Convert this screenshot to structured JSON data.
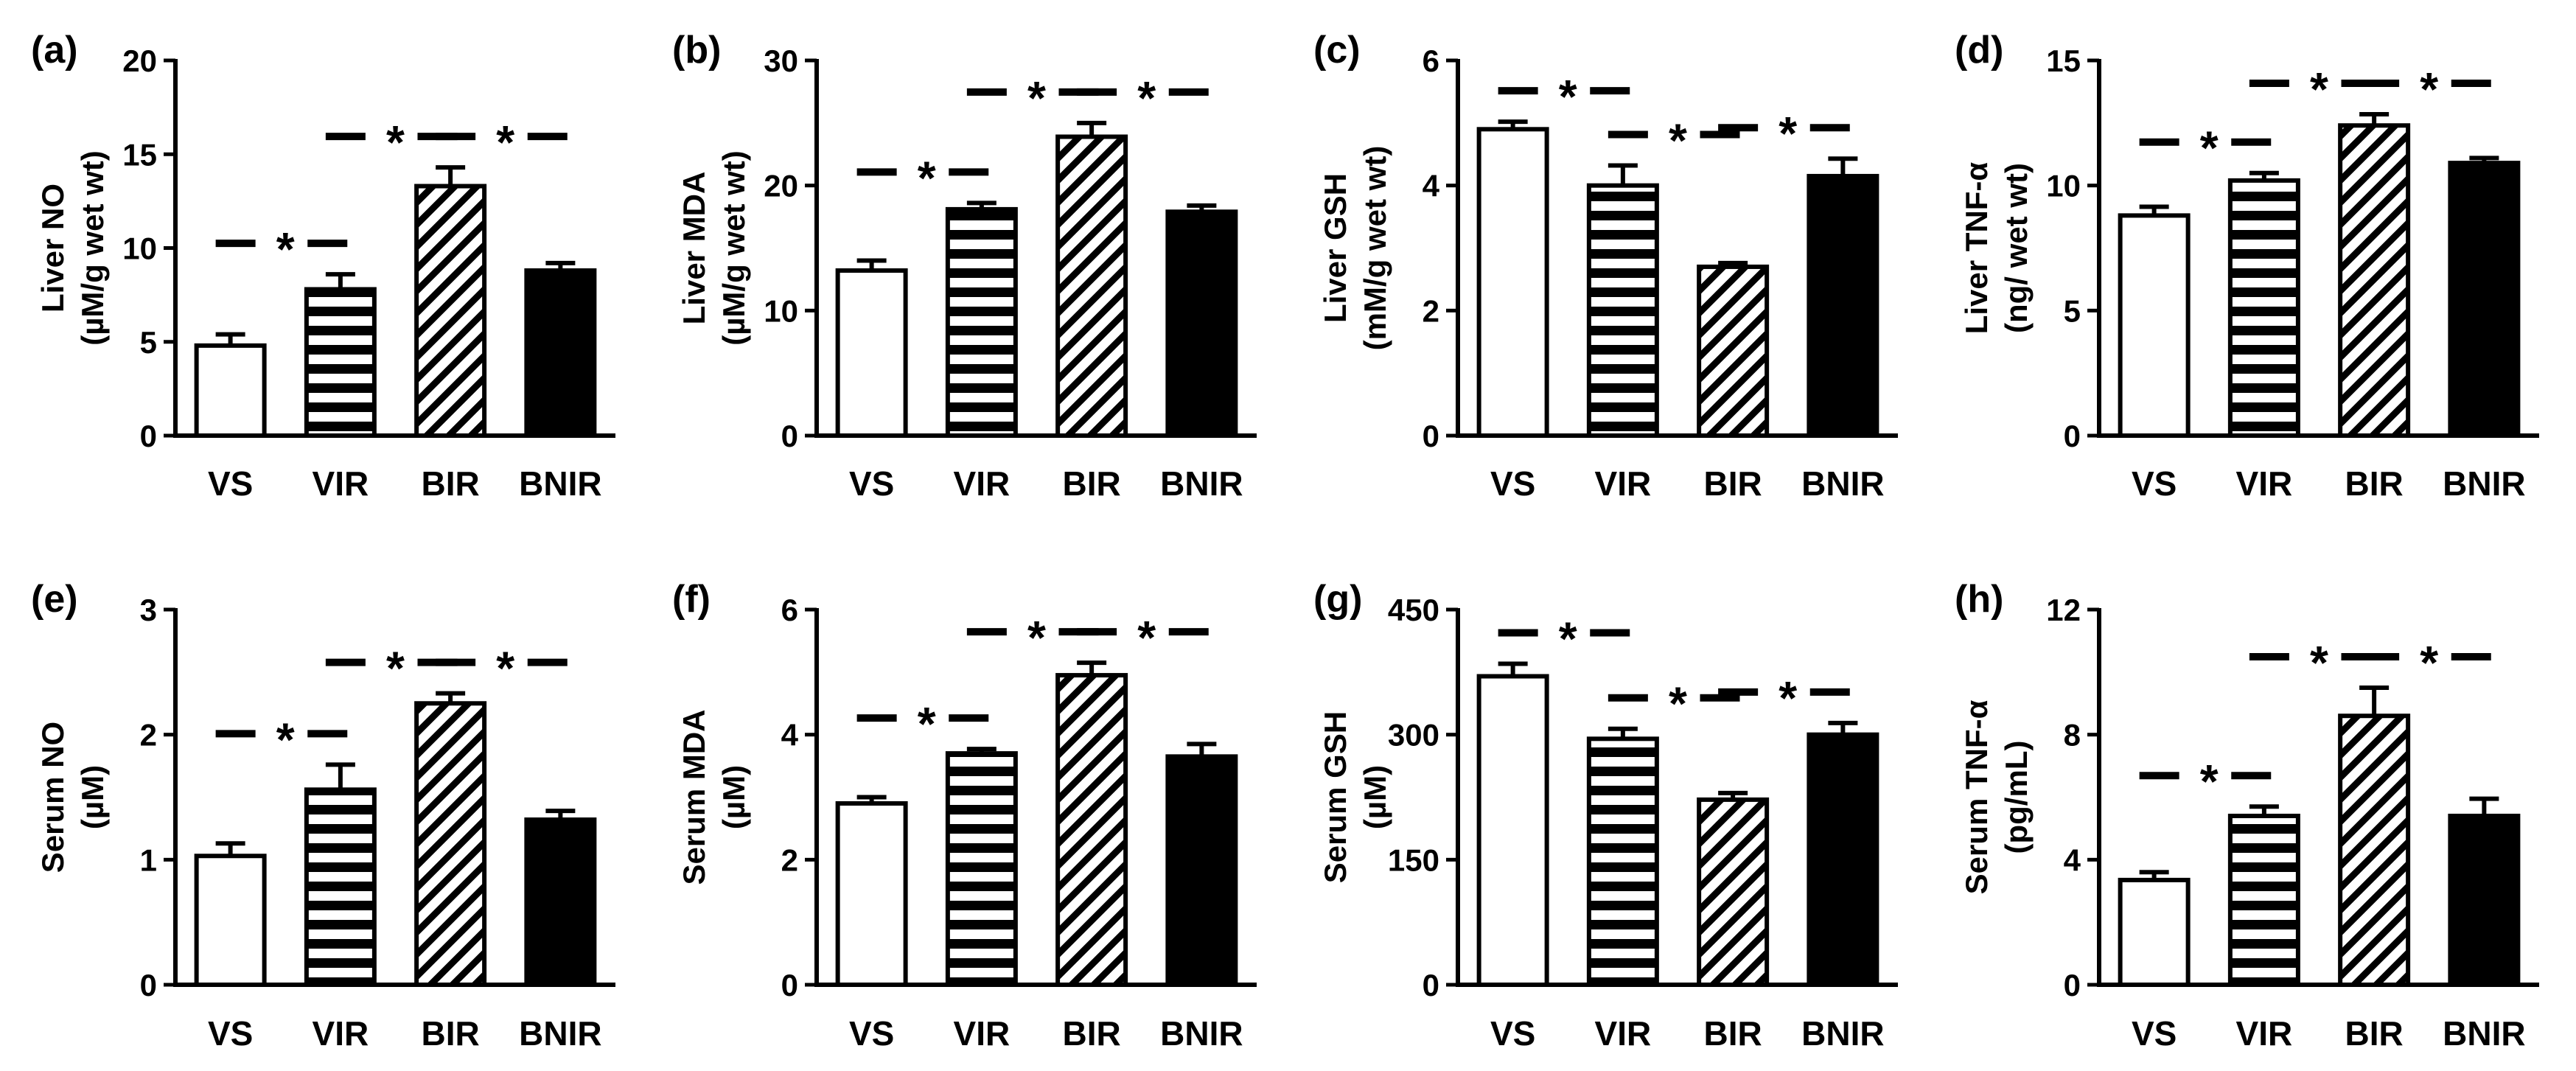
{
  "chart_data": [
    {
      "panel": "(a)",
      "type": "bar",
      "ylabel": [
        "Liver NO",
        "(µM/g wet wt)"
      ],
      "categories": [
        "VS",
        "VIR",
        "BIR",
        "BNIR"
      ],
      "values": [
        4.8,
        7.8,
        13.3,
        8.8
      ],
      "errors": [
        0.6,
        0.8,
        1.0,
        0.4
      ],
      "ylim": [
        0,
        20
      ],
      "yticks": [
        "0",
        "5",
        "10",
        "15",
        "20"
      ],
      "significance": [
        {
          "from": 0,
          "to": 1,
          "label": "*"
        },
        {
          "from": 1,
          "to": 2,
          "label": "*"
        },
        {
          "from": 2,
          "to": 3,
          "label": "*"
        }
      ]
    },
    {
      "panel": "(b)",
      "type": "bar",
      "ylabel": [
        "Liver MDA",
        "(µM/g wet wt)"
      ],
      "categories": [
        "VS",
        "VIR",
        "BIR",
        "BNIR"
      ],
      "values": [
        13.2,
        18.1,
        23.9,
        17.9
      ],
      "errors": [
        0.8,
        0.5,
        1.1,
        0.5
      ],
      "ylim": [
        0,
        30
      ],
      "yticks": [
        "0",
        "10",
        "20",
        "30"
      ],
      "significance": [
        {
          "from": 0,
          "to": 1,
          "label": "*"
        },
        {
          "from": 1,
          "to": 2,
          "label": "*"
        },
        {
          "from": 2,
          "to": 3,
          "label": "*"
        }
      ]
    },
    {
      "panel": "(c)",
      "type": "bar",
      "ylabel": [
        "Liver GSH",
        "(mM/g wet wt)"
      ],
      "categories": [
        "VS",
        "VIR",
        "BIR",
        "BNIR"
      ],
      "values": [
        4.9,
        4.0,
        2.7,
        4.15
      ],
      "errors": [
        0.12,
        0.32,
        0.06,
        0.28
      ],
      "ylim": [
        0,
        6
      ],
      "yticks": [
        "0",
        "2",
        "4",
        "6"
      ],
      "significance": [
        {
          "from": 0,
          "to": 1,
          "label": "*"
        },
        {
          "from": 1,
          "to": 2,
          "label": "*"
        },
        {
          "from": 2,
          "to": 3,
          "label": "*"
        }
      ]
    },
    {
      "panel": "(d)",
      "type": "bar",
      "ylabel": [
        "Liver TNF-α",
        "(ng/ wet wt)"
      ],
      "categories": [
        "VS",
        "VIR",
        "BIR",
        "BNIR"
      ],
      "values": [
        8.8,
        10.2,
        12.4,
        10.9
      ],
      "errors": [
        0.35,
        0.3,
        0.45,
        0.2
      ],
      "ylim": [
        0,
        15
      ],
      "yticks": [
        "0",
        "5",
        "10",
        "15"
      ],
      "significance": [
        {
          "from": 0,
          "to": 1,
          "label": "*"
        },
        {
          "from": 1,
          "to": 2,
          "label": "*"
        },
        {
          "from": 2,
          "to": 3,
          "label": "*"
        }
      ]
    },
    {
      "panel": "(e)",
      "type": "bar",
      "ylabel": [
        "Serum NO",
        "(µM)"
      ],
      "categories": [
        "VS",
        "VIR",
        "BIR",
        "BNIR"
      ],
      "values": [
        1.03,
        1.56,
        2.25,
        1.32
      ],
      "errors": [
        0.1,
        0.2,
        0.08,
        0.07
      ],
      "ylim": [
        0,
        3
      ],
      "yticks": [
        "0",
        "1",
        "2",
        "3"
      ],
      "significance": [
        {
          "from": 0,
          "to": 1,
          "label": "*"
        },
        {
          "from": 1,
          "to": 2,
          "label": "*"
        },
        {
          "from": 2,
          "to": 3,
          "label": "*"
        }
      ]
    },
    {
      "panel": "(f)",
      "type": "bar",
      "ylabel": [
        "Serum MDA",
        "(µM)"
      ],
      "categories": [
        "VS",
        "VIR",
        "BIR",
        "BNIR"
      ],
      "values": [
        2.9,
        3.7,
        4.95,
        3.65
      ],
      "errors": [
        0.1,
        0.07,
        0.2,
        0.2
      ],
      "ylim": [
        0,
        6
      ],
      "yticks": [
        "0",
        "2",
        "4",
        "6"
      ],
      "significance": [
        {
          "from": 0,
          "to": 1,
          "label": "*"
        },
        {
          "from": 1,
          "to": 2,
          "label": "*"
        },
        {
          "from": 2,
          "to": 3,
          "label": "*"
        }
      ]
    },
    {
      "panel": "(g)",
      "type": "bar",
      "ylabel": [
        "Serum GSH",
        "(µM)"
      ],
      "categories": [
        "VS",
        "VIR",
        "BIR",
        "BNIR"
      ],
      "values": [
        370,
        295,
        222,
        300
      ],
      "errors": [
        15,
        12,
        8,
        14
      ],
      "ylim": [
        0,
        450
      ],
      "yticks": [
        "0",
        "150",
        "300",
        "450"
      ],
      "significance": [
        {
          "from": 0,
          "to": 1,
          "label": "*"
        },
        {
          "from": 1,
          "to": 2,
          "label": "*"
        },
        {
          "from": 2,
          "to": 3,
          "label": "*"
        }
      ]
    },
    {
      "panel": "(h)",
      "type": "bar",
      "ylabel": [
        "Serum TNF-α",
        "(pg/mL)"
      ],
      "categories": [
        "VS",
        "VIR",
        "BIR",
        "BNIR"
      ],
      "values": [
        3.35,
        5.4,
        8.6,
        5.4
      ],
      "errors": [
        0.25,
        0.3,
        0.9,
        0.55
      ],
      "ylim": [
        0,
        12
      ],
      "yticks": [
        "0",
        "4",
        "8",
        "12"
      ],
      "significance": [
        {
          "from": 0,
          "to": 1,
          "label": "*"
        },
        {
          "from": 1,
          "to": 2,
          "label": "*"
        },
        {
          "from": 2,
          "to": 3,
          "label": "*"
        }
      ]
    }
  ],
  "bar_styles": [
    "open",
    "horizontal-stripes",
    "diagonal-hatch",
    "solid"
  ],
  "colors": {
    "ink": "#000000",
    "background": "#ffffff"
  }
}
